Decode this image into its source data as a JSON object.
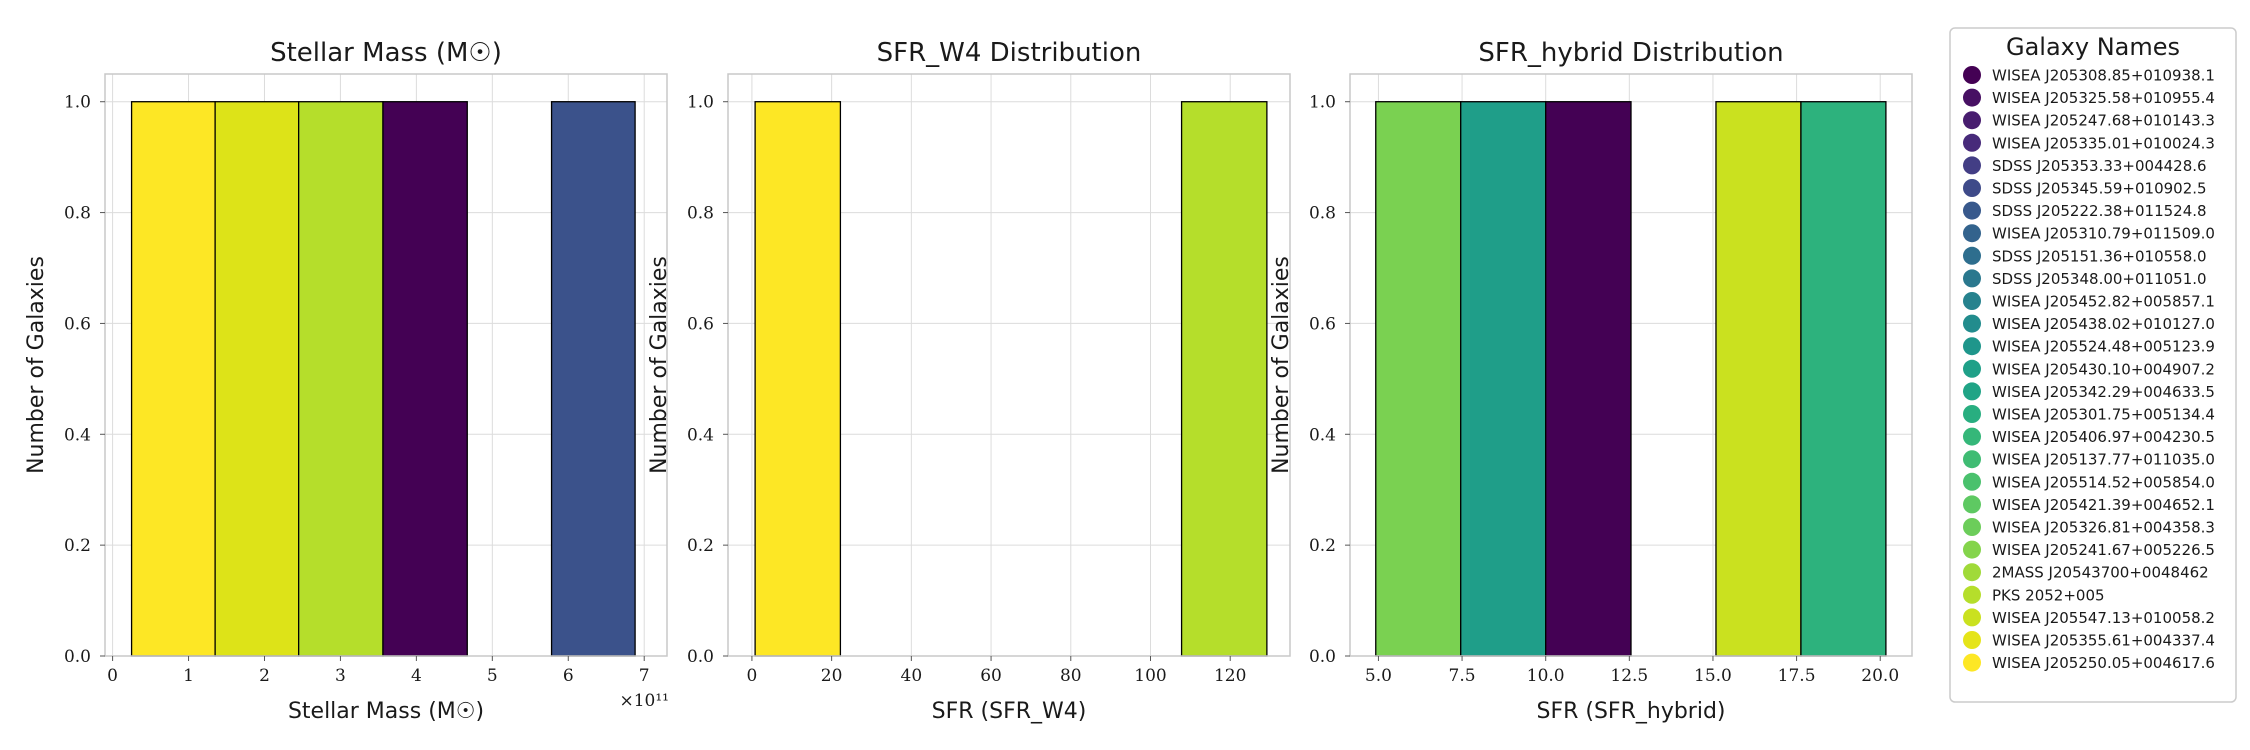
{
  "chart_data": [
    {
      "type": "bar",
      "title": "Stellar Mass (M☉)",
      "xlabel": "Stellar Mass (M☉)",
      "ylabel": "Number of Galaxies",
      "x_ticks": [
        "0",
        "1",
        "2",
        "3",
        "4",
        "5",
        "6",
        "7"
      ],
      "x_offset_label": "×10¹¹",
      "y_ticks": [
        "0.0",
        "0.2",
        "0.4",
        "0.6",
        "0.8",
        "1.0"
      ],
      "xlim": [
        -0.1,
        7.3
      ],
      "ylim": [
        0,
        1.05
      ],
      "grid": true,
      "bars": [
        {
          "x0": 0.25,
          "x1": 1.35,
          "value": 1,
          "color": "#fde725"
        },
        {
          "x0": 1.35,
          "x1": 2.45,
          "value": 1,
          "color": "#dde318"
        },
        {
          "x0": 2.45,
          "x1": 3.56,
          "value": 1,
          "color": "#b5de2b"
        },
        {
          "x0": 3.56,
          "x1": 4.67,
          "value": 1,
          "color": "#440154"
        },
        {
          "x0": 5.78,
          "x1": 6.88,
          "value": 1,
          "color": "#3b528b"
        }
      ]
    },
    {
      "type": "bar",
      "title": "SFR_W4 Distribution",
      "xlabel": "SFR (SFR_W4)",
      "ylabel": "Number of Galaxies",
      "x_ticks": [
        "0",
        "20",
        "40",
        "60",
        "80",
        "100",
        "120"
      ],
      "y_ticks": [
        "0.0",
        "0.2",
        "0.4",
        "0.6",
        "0.8",
        "1.0"
      ],
      "xlim": [
        -6,
        135
      ],
      "ylim": [
        0,
        1.05
      ],
      "grid": true,
      "bars": [
        {
          "x0": 0.8,
          "x1": 22.2,
          "value": 1,
          "color": "#fde725"
        },
        {
          "x0": 107.8,
          "x1": 129.2,
          "value": 1,
          "color": "#b5de2b"
        }
      ]
    },
    {
      "type": "bar",
      "title": "SFR_hybrid Distribution",
      "xlabel": "SFR (SFR_hybrid)",
      "ylabel": "Number of Galaxies",
      "x_ticks": [
        "5.0",
        "7.5",
        "10.0",
        "12.5",
        "15.0",
        "17.5",
        "20.0"
      ],
      "y_ticks": [
        "0.0",
        "0.2",
        "0.4",
        "0.6",
        "0.8",
        "1.0"
      ],
      "xlim": [
        4.15,
        20.95
      ],
      "ylim": [
        0,
        1.05
      ],
      "grid": true,
      "bars": [
        {
          "x0": 4.92,
          "x1": 7.46,
          "value": 1,
          "color": "#7ad151"
        },
        {
          "x0": 7.46,
          "x1": 10.0,
          "value": 1,
          "color": "#1f9e89"
        },
        {
          "x0": 10.0,
          "x1": 12.55,
          "value": 1,
          "color": "#440154"
        },
        {
          "x0": 15.09,
          "x1": 17.63,
          "value": 1,
          "color": "#cae11f"
        },
        {
          "x0": 17.63,
          "x1": 20.17,
          "value": 1,
          "color": "#2db27d"
        }
      ]
    }
  ],
  "legend": {
    "title": "Galaxy Names",
    "placement": "outside-right",
    "items": [
      {
        "label": "WISEA J205308.85+010938.1",
        "color": "#440154"
      },
      {
        "label": "WISEA J205325.58+010955.4",
        "color": "#471063"
      },
      {
        "label": "WISEA J205247.68+010143.3",
        "color": "#481d6f"
      },
      {
        "label": "WISEA J205335.01+010024.3",
        "color": "#472a7a"
      },
      {
        "label": "SDSS J205353.33+004428.6",
        "color": "#433e85"
      },
      {
        "label": "SDSS J205345.59+010902.5",
        "color": "#3e4a89"
      },
      {
        "label": "SDSS J205222.38+011524.8",
        "color": "#38598c"
      },
      {
        "label": "WISEA J205310.79+011509.0",
        "color": "#33638d"
      },
      {
        "label": "SDSS J205151.36+010558.0",
        "color": "#2e6e8e"
      },
      {
        "label": "SDSS J205348.00+011051.0",
        "color": "#2a788e"
      },
      {
        "label": "WISEA J205452.82+005857.1",
        "color": "#26828e"
      },
      {
        "label": "WISEA J205438.02+010127.0",
        "color": "#228c8d"
      },
      {
        "label": "WISEA J205524.48+005123.9",
        "color": "#1f968b"
      },
      {
        "label": "WISEA J205430.10+004907.2",
        "color": "#1fa088"
      },
      {
        "label": "WISEA J205342.29+004633.5",
        "color": "#20a486"
      },
      {
        "label": "WISEA J205301.75+005134.4",
        "color": "#28ae80"
      },
      {
        "label": "WISEA J205406.97+004230.5",
        "color": "#35b779"
      },
      {
        "label": "WISEA J205137.77+011035.0",
        "color": "#3fbc73"
      },
      {
        "label": "WISEA J205514.52+005854.0",
        "color": "#4ac16d"
      },
      {
        "label": "WISEA J205421.39+004652.1",
        "color": "#5ec962"
      },
      {
        "label": "WISEA J205326.81+004358.3",
        "color": "#6ccd5a"
      },
      {
        "label": "WISEA J205241.67+005226.5",
        "color": "#84d44b"
      },
      {
        "label": "2MASS J20543700+0048462",
        "color": "#a0da39"
      },
      {
        "label": "PKS 2052+005",
        "color": "#b5de2b"
      },
      {
        "label": "WISEA J205547.13+010058.2",
        "color": "#cae11f"
      },
      {
        "label": "WISEA J205355.61+004337.4",
        "color": "#e5e419"
      },
      {
        "label": "WISEA J205250.05+004617.6",
        "color": "#fde725"
      }
    ]
  }
}
